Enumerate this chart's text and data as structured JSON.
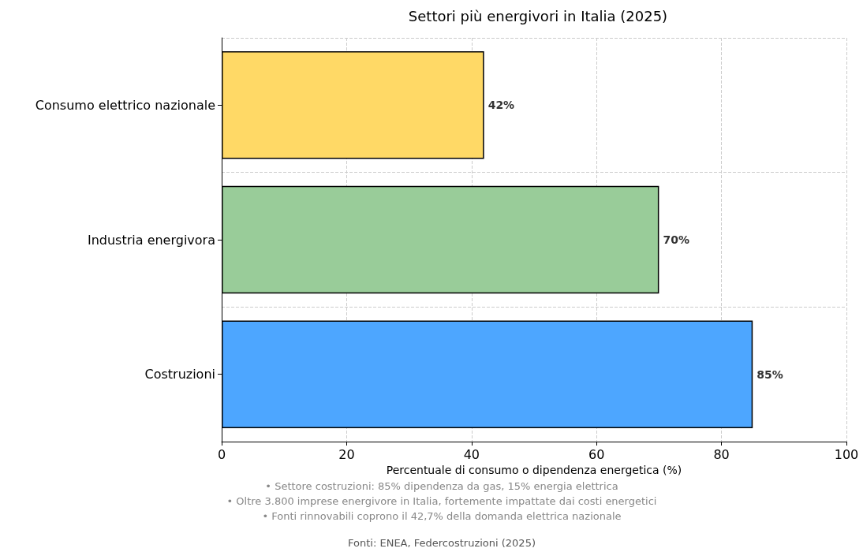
{
  "chart_data": {
    "type": "bar",
    "orientation": "horizontal",
    "title": "Settori più energivori in Italia (2025)",
    "xlabel": "Percentuale di consumo o dipendenza energetica (%)",
    "categories": [
      "Consumo elettrico nazionale",
      "Industria energivora",
      "Costruzioni"
    ],
    "values": [
      42,
      70,
      85
    ],
    "colors": [
      "#ffd966",
      "#99cc99",
      "#4da6ff"
    ],
    "value_labels": [
      "42%",
      "70%",
      "85%"
    ],
    "xlim": [
      0,
      100
    ],
    "xticks": [
      0,
      20,
      40,
      60,
      80,
      100
    ],
    "grid": true,
    "annotations": [
      "• Settore costruzioni: 85% dipendenza da gas, 15% energia elettrica",
      "• Oltre 3.800 imprese energivore in Italia, fortemente impattate dai costi energetici",
      "• Fonti rinnovabili coprono il 42,7% della domanda elettrica nazionale",
      "Fonti: ENEA, Federcostruzioni (2025)"
    ]
  }
}
